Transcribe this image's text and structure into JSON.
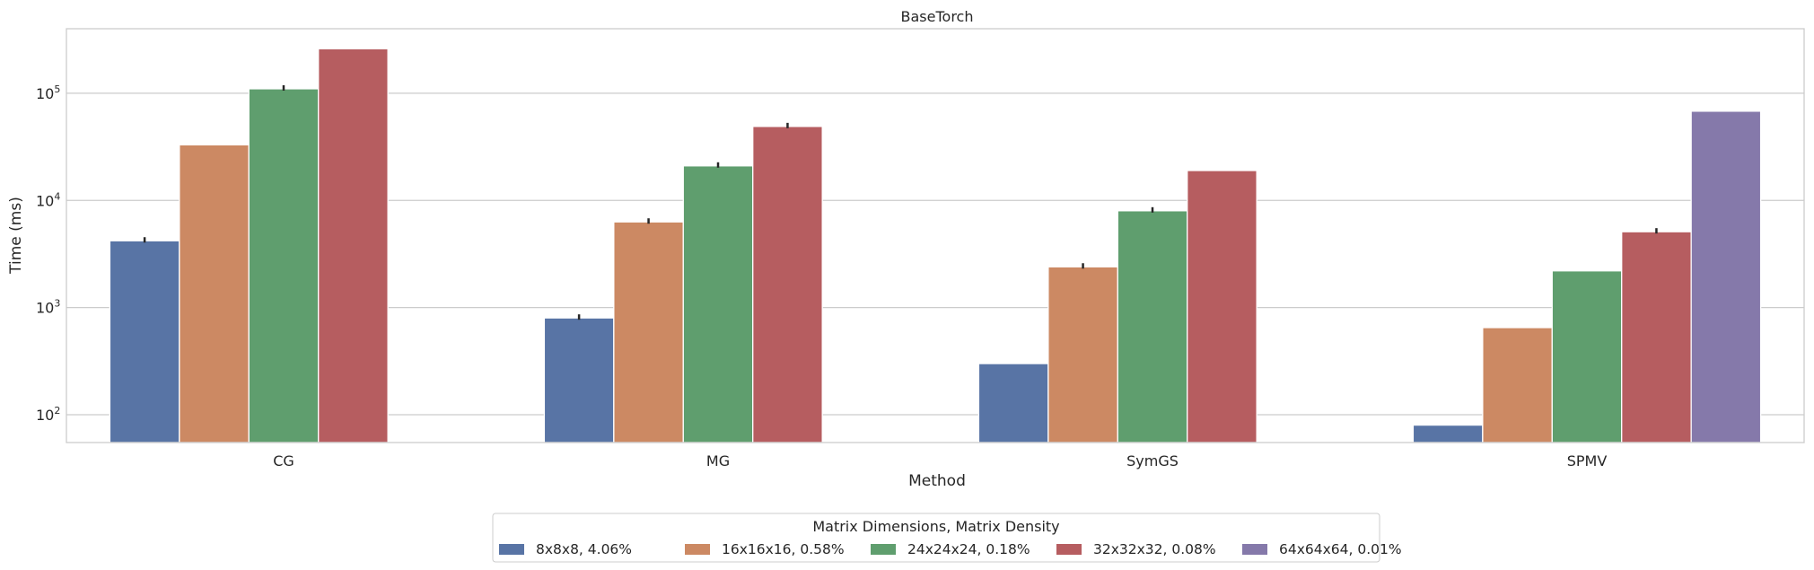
{
  "chart_data": {
    "type": "bar",
    "title": "BaseTorch",
    "xlabel": "Method",
    "ylabel": "Time (ms)",
    "yscale": "log",
    "ylim": [
      55,
      400000
    ],
    "yticks": [
      {
        "value": 100,
        "base": "10",
        "exp": "2"
      },
      {
        "value": 1000,
        "base": "10",
        "exp": "3"
      },
      {
        "value": 10000,
        "base": "10",
        "exp": "4"
      },
      {
        "value": 100000,
        "base": "10",
        "exp": "5"
      }
    ],
    "grid": "horizontal",
    "categories": [
      "CG",
      "MG",
      "SymGS",
      "SPMV"
    ],
    "legend": {
      "title": "Matrix Dimensions, Matrix Density",
      "placement": "bottom-center"
    },
    "series": [
      {
        "name": "8x8x8, 4.06%",
        "color": "#5874a5",
        "values": [
          4200,
          800,
          300,
          80
        ],
        "has_error": [
          true,
          true,
          false,
          false
        ]
      },
      {
        "name": "16x16x16, 0.58%",
        "color": "#cc8963",
        "values": [
          33000,
          6300,
          2400,
          650
        ],
        "has_error": [
          false,
          true,
          true,
          false
        ]
      },
      {
        "name": "24x24x24, 0.18%",
        "color": "#5f9e6e",
        "values": [
          110000,
          21000,
          8000,
          2200
        ],
        "has_error": [
          true,
          true,
          true,
          false
        ]
      },
      {
        "name": "32x32x32, 0.08%",
        "color": "#b65d60",
        "values": [
          260000,
          49000,
          19000,
          5100
        ],
        "has_error": [
          false,
          true,
          false,
          true
        ]
      },
      {
        "name": "64x64x64, 0.01%",
        "color": "#8579aa",
        "values": [
          null,
          null,
          null,
          68000
        ],
        "has_error": [
          false,
          false,
          false,
          false
        ]
      }
    ]
  }
}
